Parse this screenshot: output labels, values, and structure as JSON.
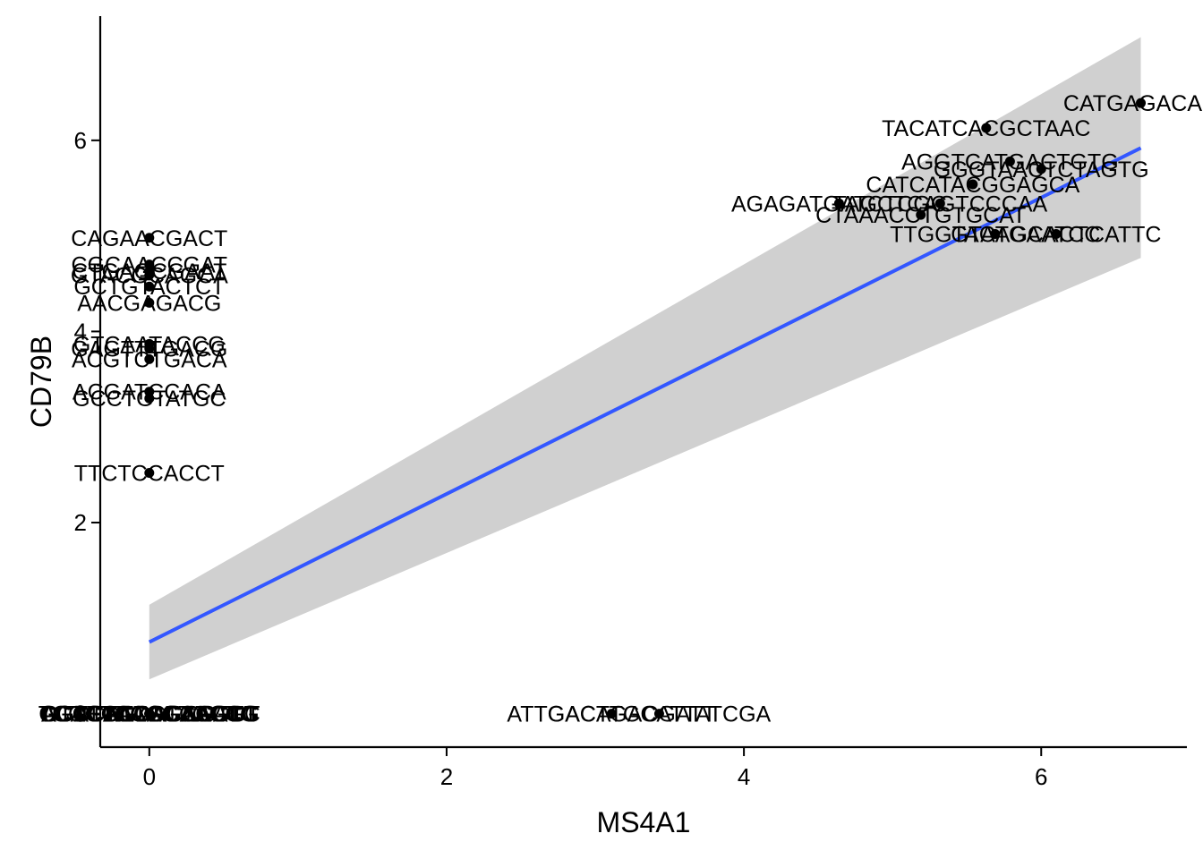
{
  "chart_data": {
    "type": "scatter",
    "xlabel": "MS4A1",
    "ylabel": "CD79B",
    "xlim": [
      -0.33,
      6.98
    ],
    "ylim": [
      -0.35,
      7.3
    ],
    "x_ticks": [
      {
        "value": 0,
        "label": "0"
      },
      {
        "value": 2,
        "label": "2"
      },
      {
        "value": 4,
        "label": "4"
      },
      {
        "value": 6,
        "label": "6"
      }
    ],
    "y_ticks": [
      {
        "value": 0,
        "label": "0"
      },
      {
        "value": 2,
        "label": "2"
      },
      {
        "value": 4,
        "label": "4"
      },
      {
        "value": 6,
        "label": "6"
      }
    ],
    "regression": {
      "method": "lm",
      "x_start": 0,
      "y_start": 0.75,
      "x_end": 6.67,
      "y_end": 5.92,
      "band_lower": [
        [
          0,
          0.36
        ],
        [
          6.67,
          4.77
        ]
      ],
      "band_upper": [
        [
          0,
          1.14
        ],
        [
          6.67,
          7.08
        ]
      ],
      "line_color": "#3357ff",
      "band_color": "#d0d0d0"
    },
    "point_color": "#000000",
    "points": [
      {
        "x": 6.67,
        "y": 6.39,
        "label": "CATGAGACAC"
      },
      {
        "x": 5.63,
        "y": 6.13,
        "label": "TACATCACGCTAAC"
      },
      {
        "x": 5.79,
        "y": 5.78,
        "label": "AGGTCATGACTGTG"
      },
      {
        "x": 6.0,
        "y": 5.7,
        "label": "GGGTAACTCTAGTG"
      },
      {
        "x": 5.54,
        "y": 5.54,
        "label": "CATCATACGGAGCA"
      },
      {
        "x": 4.64,
        "y": 5.34,
        "label": "AGAGATGATCTCGC"
      },
      {
        "x": 5.32,
        "y": 5.34,
        "label": "TAGCTCAGTCCCAA"
      },
      {
        "x": 5.19,
        "y": 5.22,
        "label": "CTAAACCTGTGCAT"
      },
      {
        "x": 5.69,
        "y": 5.02,
        "label": "TTGGTACTGAATCC"
      },
      {
        "x": 6.1,
        "y": 5.02,
        "label": "GTAAGCACTCATTC"
      },
      {
        "x": 0,
        "y": 4.98,
        "label": "CAGAACGACT"
      },
      {
        "x": 0,
        "y": 4.7,
        "label": "CGCAACCGAT"
      },
      {
        "x": 0,
        "y": 4.63,
        "label": "CTGAGCGAAT"
      },
      {
        "x": 0,
        "y": 4.59,
        "label": "GTACGCAGCA"
      },
      {
        "x": 0,
        "y": 4.47,
        "label": "GCTGTACTCT"
      },
      {
        "x": 0,
        "y": 4.3,
        "label": "AACGAGACG"
      },
      {
        "x": 0,
        "y": 3.87,
        "label": "GTCAATACCG"
      },
      {
        "x": 0,
        "y": 3.82,
        "label": "GAGTTTGACG"
      },
      {
        "x": 0,
        "y": 3.71,
        "label": "ACGTCTGACA"
      },
      {
        "x": 0,
        "y": 3.37,
        "label": "ACGATCCACA"
      },
      {
        "x": 0,
        "y": 3.3,
        "label": "GCCTGTATGC"
      },
      {
        "x": 0,
        "y": 2.52,
        "label": "TTCTCCACCT"
      },
      {
        "x": 3.11,
        "y": 0,
        "label": "ATTGACTGACGATT"
      },
      {
        "x": 3.43,
        "y": 0,
        "label": "GACATGCATTATCGA"
      },
      {
        "x": 0,
        "y": 0,
        "label": "CCTCGACCTGAGGT"
      },
      {
        "x": 0,
        "y": 0,
        "label": "AGCTTGCACTGGTT"
      },
      {
        "x": 0,
        "y": 0,
        "label": "GTCCAGAACCGTTT"
      },
      {
        "x": 0,
        "y": 0,
        "label": "TGACTCAGGAAGTG"
      },
      {
        "x": 0,
        "y": 0,
        "label": "CGATTCCAGCTCCG"
      },
      {
        "x": 0,
        "y": 0,
        "label": "ACTCGTTGGACATG"
      },
      {
        "x": 0,
        "y": 0,
        "label": "GGTCTAACCTGCCG"
      },
      {
        "x": 0,
        "y": 0,
        "label": "TCGGATCCGAAGGC"
      }
    ]
  }
}
